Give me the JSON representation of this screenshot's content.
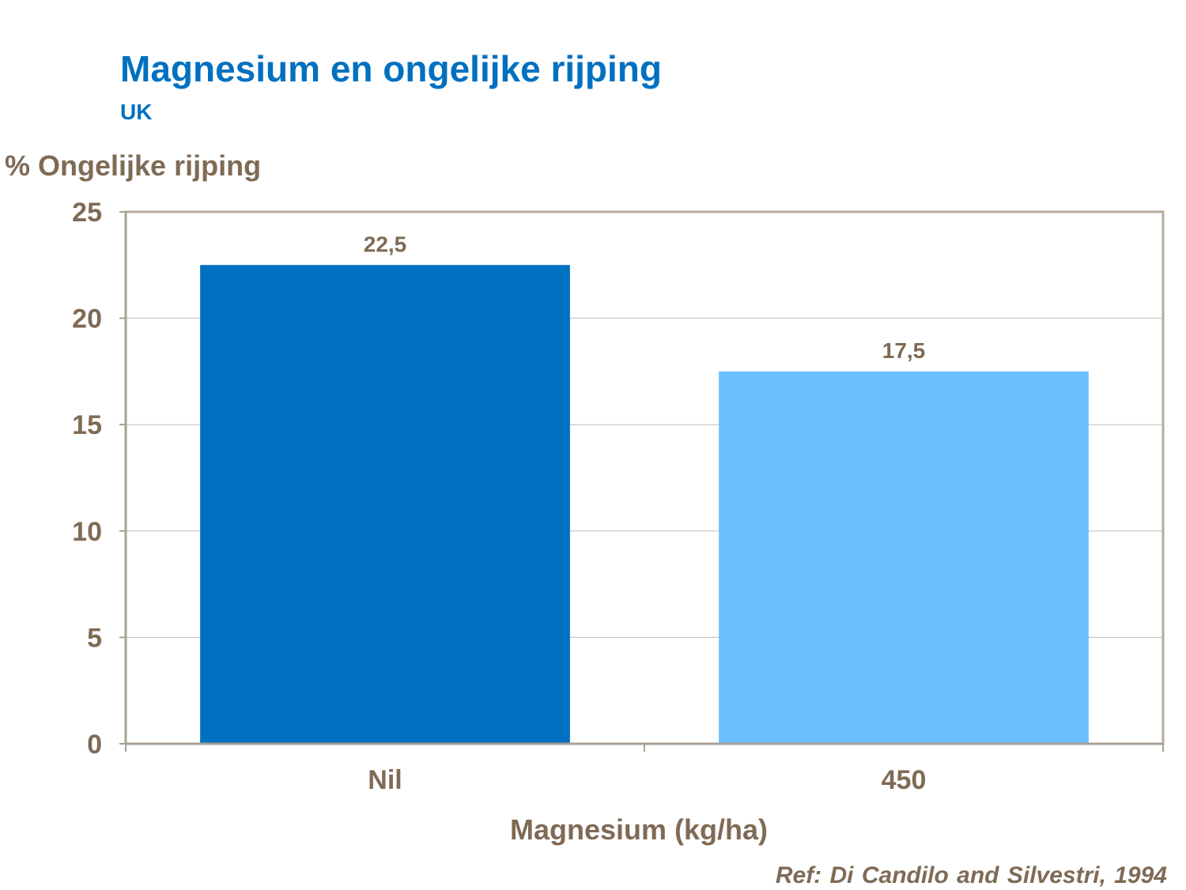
{
  "chart_data": {
    "type": "bar",
    "title": "Magnesium en ongelijke rijping",
    "subtitle": "UK",
    "ylabel": "% Ongelijke rijping",
    "xlabel": "Magnesium (kg/ha)",
    "categories": [
      "Nil",
      "450"
    ],
    "values": [
      22.5,
      17.5
    ],
    "data_labels": [
      "22,5",
      "17,5"
    ],
    "bar_colors": [
      "#0070c0",
      "#6bbfff"
    ],
    "ylim": [
      0,
      25
    ],
    "yticks": [
      0,
      5,
      10,
      15,
      20,
      25
    ],
    "grid": true,
    "legend": "none"
  },
  "reference": "Ref: Di Candilo and Silvestri, 1994",
  "colors": {
    "title": "#0070c0",
    "text": "#7f6a55",
    "axis": "#a89f93",
    "grid": "#bdbdbd",
    "frame": "#b6aa9c"
  }
}
